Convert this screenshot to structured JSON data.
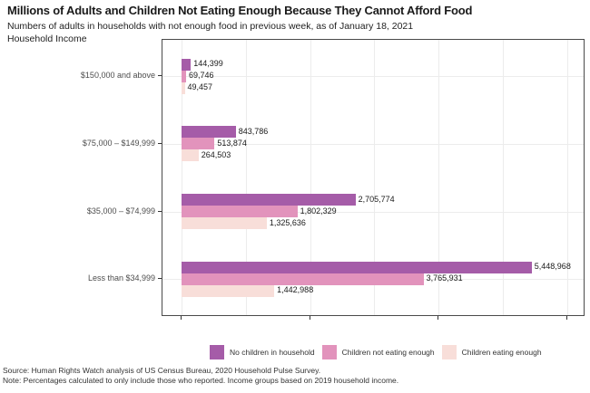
{
  "header": {
    "title": "Millions of Adults and Children Not Eating Enough Because They Cannot Afford Food",
    "subtitle": "Numbers of adults in households with not enough food in previous week, as of January 18, 2021",
    "axis_label": "Household Income"
  },
  "chart_data": {
    "type": "bar",
    "orientation": "horizontal",
    "title": "Millions of Adults and Children Not Eating Enough Because They Cannot Afford Food",
    "subtitle": "Numbers of adults in households with not enough food in previous week, as of January 18, 2021",
    "ylabel": "Household Income",
    "xlabel": "",
    "categories": [
      "$150,000 and above",
      "$75,000 – $149,999",
      "$35,000 – $74,999",
      "Less than $34,999"
    ],
    "series": [
      {
        "name": "No children in household",
        "color": "#a55ca8",
        "values": [
          144399,
          843786,
          2705774,
          5448968
        ],
        "labels": [
          "144,399",
          "843,786",
          "2,705,774",
          "5,448,968"
        ]
      },
      {
        "name": "Children not eating enough",
        "color": "#e293bc",
        "values": [
          69746,
          513874,
          1802329,
          3765931
        ],
        "labels": [
          "69,746",
          "513,874",
          "1,802,329",
          "3,765,931"
        ]
      },
      {
        "name": "Children eating enough",
        "color": "#f8ded9",
        "values": [
          49457,
          264503,
          1325636,
          1442988
        ],
        "labels": [
          "49,457",
          "264,503",
          "1,325,636",
          "1,442,988"
        ]
      }
    ],
    "xlim": [
      0,
      6000000
    ],
    "x_minor_tick_interval": 1000000,
    "x_major_tick_interval": 2000000,
    "x_tick_labels_shown": false,
    "grid": true,
    "legend_position": "bottom"
  },
  "footer": {
    "source": "Source: Human Rights Watch analysis of US Census Bureau, 2020 Household Pulse Survey.",
    "note": "Note: Percentages calculated to only include those who reported. Income groups based on 2019 household income."
  }
}
